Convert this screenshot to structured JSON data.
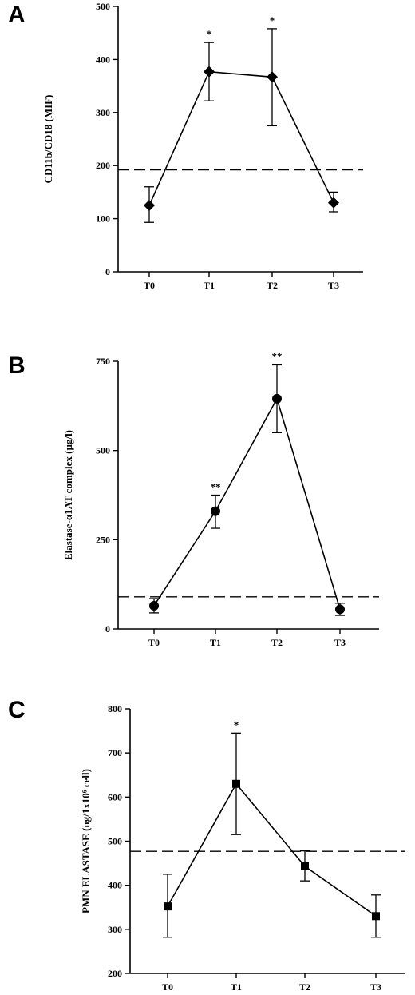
{
  "chart_data": [
    {
      "type": "line",
      "panel_label": "A",
      "ylabel": "CD11b/CD18 (MIF)",
      "categories": [
        "T0",
        "T1",
        "T2",
        "T3"
      ],
      "yticks": [
        "0",
        "100",
        "200",
        "300",
        "400",
        "500"
      ],
      "ylim": [
        0,
        500
      ],
      "marker": "diamond",
      "series": [
        {
          "values": [
            125,
            377,
            367,
            130
          ],
          "err_low": [
            93,
            322,
            275,
            113
          ],
          "err_high": [
            160,
            432,
            458,
            150
          ]
        }
      ],
      "reference_line": 192,
      "annotations": [
        "",
        "*",
        "*",
        ""
      ]
    },
    {
      "type": "line",
      "panel_label": "B",
      "ylabel": "Elastase-α1AT complex (µg/l)",
      "categories": [
        "T0",
        "T1",
        "T2",
        "T3"
      ],
      "yticks": [
        "0",
        "250",
        "500",
        "750"
      ],
      "ylim": [
        0,
        750
      ],
      "marker": "circle",
      "series": [
        {
          "values": [
            65,
            330,
            645,
            55
          ],
          "err_low": [
            45,
            282,
            550,
            38
          ],
          "err_high": [
            85,
            375,
            740,
            72
          ]
        }
      ],
      "reference_line": 90,
      "annotations": [
        "",
        "**",
        "**",
        ""
      ]
    },
    {
      "type": "line",
      "panel_label": "C",
      "ylabel": "PMN ELASTASE (ng/1x10⁶ cell)",
      "categories": [
        "T0",
        "T1",
        "T2",
        "T3"
      ],
      "yticks": [
        "200",
        "300",
        "400",
        "500",
        "600",
        "700",
        "800"
      ],
      "ylim": [
        200,
        800
      ],
      "marker": "square",
      "series": [
        {
          "values": [
            352,
            630,
            443,
            330
          ],
          "err_low": [
            282,
            515,
            410,
            282
          ],
          "err_high": [
            425,
            745,
            478,
            378
          ]
        }
      ],
      "reference_line": 477,
      "annotations": [
        "",
        "*",
        "",
        ""
      ]
    }
  ]
}
